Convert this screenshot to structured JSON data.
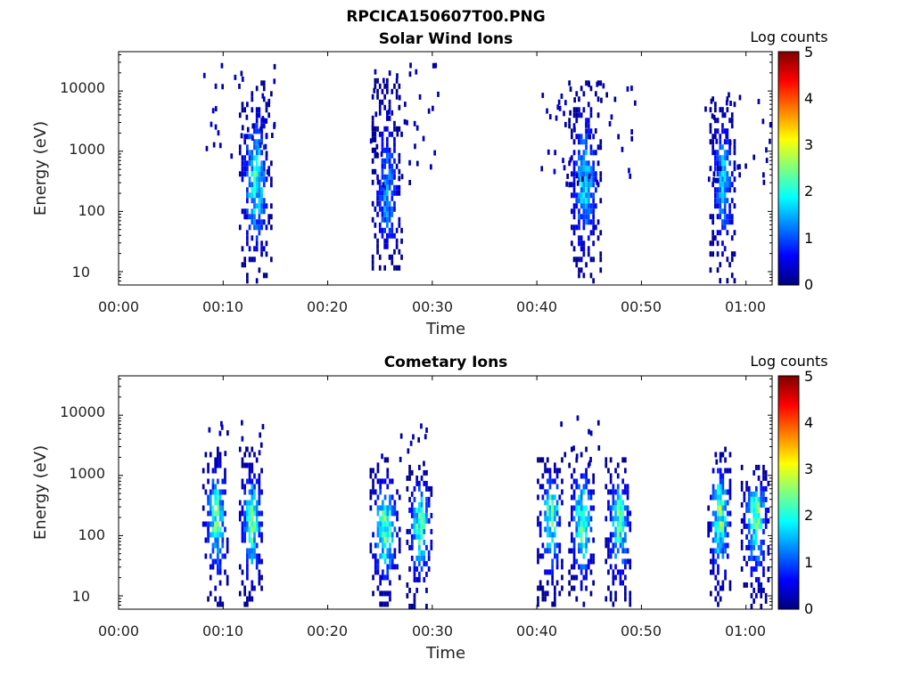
{
  "figure": {
    "title": "RPCICA150607T00.PNG"
  },
  "colors": {
    "colormap": [
      "#00007f",
      "#0000ff",
      "#007fff",
      "#00ffff",
      "#7fff7f",
      "#ffff00",
      "#ff7f00",
      "#ff0000",
      "#7f0000"
    ]
  },
  "chart_data": [
    {
      "type": "heatmap",
      "title": "Solar Wind Ions",
      "xlabel": "Time",
      "ylabel": "Energy (eV)",
      "x_ticks": [
        "00:00",
        "00:10",
        "00:20",
        "00:30",
        "00:40",
        "00:50",
        "01:00"
      ],
      "x_range_min": [
        0,
        62.5
      ],
      "y_ticks": [
        "10",
        "100",
        "1000",
        "10000"
      ],
      "y_tick_values": [
        10,
        100,
        1000,
        10000
      ],
      "y_scale": "log",
      "y_range_eV": [
        6,
        45000
      ],
      "colorbar": {
        "label": "Log counts",
        "ticks": [
          "0",
          "1",
          "2",
          "3",
          "4",
          "5"
        ],
        "range": [
          0,
          5
        ]
      },
      "bursts": [
        {
          "t_start_min": 11.5,
          "t_end_min": 14.5,
          "e_min_eV": 6,
          "e_max_eV": 15000,
          "peak_log_counts": 2.3,
          "peak_energy_eV": 400
        },
        {
          "t_start_min": 24.2,
          "t_end_min": 27.0,
          "e_min_eV": 10,
          "e_max_eV": 20000,
          "peak_log_counts": 1.6,
          "peak_energy_eV": 150
        },
        {
          "t_start_min": 43.0,
          "t_end_min": 46.0,
          "e_min_eV": 6,
          "e_max_eV": 15000,
          "peak_log_counts": 2.0,
          "peak_energy_eV": 300
        },
        {
          "t_start_min": 56.5,
          "t_end_min": 59.0,
          "e_min_eV": 6,
          "e_max_eV": 10000,
          "peak_log_counts": 1.8,
          "peak_energy_eV": 400
        }
      ],
      "sparse_scatter": [
        {
          "t_start_min": 8.0,
          "t_end_min": 15.0,
          "e_min_eV": 500,
          "e_max_eV": 30000
        },
        {
          "t_start_min": 24.0,
          "t_end_min": 30.5,
          "e_min_eV": 300,
          "e_max_eV": 30000
        },
        {
          "t_start_min": 40.0,
          "t_end_min": 49.5,
          "e_min_eV": 300,
          "e_max_eV": 15000
        },
        {
          "t_start_min": 56.0,
          "t_end_min": 62.5,
          "e_min_eV": 300,
          "e_max_eV": 12000
        }
      ]
    },
    {
      "type": "heatmap",
      "title": "Cometary Ions",
      "xlabel": "Time",
      "ylabel": "Energy (eV)",
      "x_ticks": [
        "00:00",
        "00:10",
        "00:20",
        "00:30",
        "00:40",
        "00:50",
        "01:00"
      ],
      "x_range_min": [
        0,
        62.5
      ],
      "y_ticks": [
        "10",
        "100",
        "1000",
        "10000"
      ],
      "y_tick_values": [
        10,
        100,
        1000,
        10000
      ],
      "y_scale": "log",
      "y_range_eV": [
        6,
        45000
      ],
      "colorbar": {
        "label": "Log counts",
        "ticks": [
          "0",
          "1",
          "2",
          "3",
          "4",
          "5"
        ],
        "range": [
          0,
          5
        ]
      },
      "bursts": [
        {
          "t_start_min": 8.0,
          "t_end_min": 10.5,
          "e_min_eV": 6,
          "e_max_eV": 3000,
          "peak_log_counts": 2.6,
          "peak_energy_eV": 250
        },
        {
          "t_start_min": 11.5,
          "t_end_min": 13.8,
          "e_min_eV": 6,
          "e_max_eV": 3000,
          "peak_log_counts": 2.7,
          "peak_energy_eV": 200
        },
        {
          "t_start_min": 24.0,
          "t_end_min": 26.8,
          "e_min_eV": 8,
          "e_max_eV": 2000,
          "peak_log_counts": 2.9,
          "peak_energy_eV": 150
        },
        {
          "t_start_min": 27.5,
          "t_end_min": 30.0,
          "e_min_eV": 6,
          "e_max_eV": 1500,
          "peak_log_counts": 2.7,
          "peak_energy_eV": 200
        },
        {
          "t_start_min": 40.0,
          "t_end_min": 42.5,
          "e_min_eV": 8,
          "e_max_eV": 2000,
          "peak_log_counts": 2.7,
          "peak_energy_eV": 300
        },
        {
          "t_start_min": 43.0,
          "t_end_min": 45.5,
          "e_min_eV": 6,
          "e_max_eV": 3000,
          "peak_log_counts": 2.8,
          "peak_energy_eV": 200
        },
        {
          "t_start_min": 46.5,
          "t_end_min": 49.0,
          "e_min_eV": 8,
          "e_max_eV": 2000,
          "peak_log_counts": 2.7,
          "peak_energy_eV": 200
        },
        {
          "t_start_min": 56.3,
          "t_end_min": 58.5,
          "e_min_eV": 6,
          "e_max_eV": 3000,
          "peak_log_counts": 2.9,
          "peak_energy_eV": 300
        },
        {
          "t_start_min": 59.5,
          "t_end_min": 62.2,
          "e_min_eV": 6,
          "e_max_eV": 1500,
          "peak_log_counts": 2.8,
          "peak_energy_eV": 300
        }
      ],
      "sparse_scatter": [
        {
          "t_start_min": 8.5,
          "t_end_min": 14.0,
          "e_min_eV": 2000,
          "e_max_eV": 12000
        },
        {
          "t_start_min": 25.0,
          "t_end_min": 29.5,
          "e_min_eV": 1500,
          "e_max_eV": 9000
        },
        {
          "t_start_min": 42.0,
          "t_end_min": 46.0,
          "e_min_eV": 1500,
          "e_max_eV": 13000
        },
        {
          "t_start_min": 56.5,
          "t_end_min": 58.0,
          "e_min_eV": 1500,
          "e_max_eV": 3000
        }
      ]
    }
  ]
}
